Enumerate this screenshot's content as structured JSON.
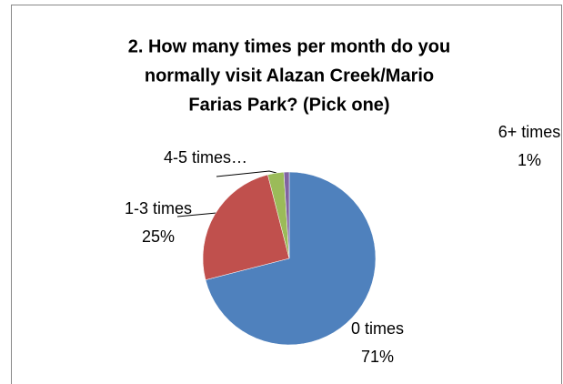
{
  "chart_data": {
    "type": "pie",
    "title": [
      "2. How many times per month do you",
      "normally visit Alazan Creek/Mario",
      "Farias Park? (Pick one)"
    ],
    "categories": [
      "0 times",
      "1-3 times",
      "4-5 times…",
      "6+ times"
    ],
    "values": [
      71,
      25,
      3,
      1
    ],
    "value_labels": [
      "71%",
      "25%",
      null,
      "1%"
    ],
    "colors": [
      "#4f81bd",
      "#c0504d",
      "#9bbb59",
      "#8064a2"
    ]
  }
}
